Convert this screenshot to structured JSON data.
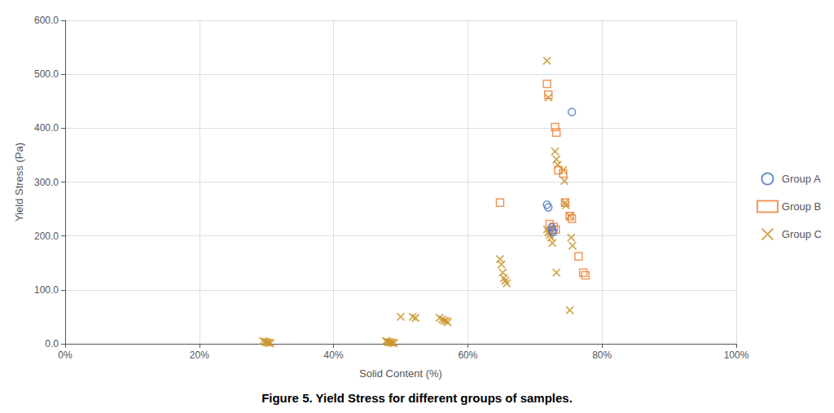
{
  "chart_data": {
    "type": "scatter",
    "title": "Figure 5. Yield Stress for different groups of samples.",
    "x_label": "Solid Content (%)",
    "y_label": "Yield Stress (Pa)",
    "xlim": [
      0,
      1.0
    ],
    "ylim": [
      0,
      600
    ],
    "xticks": [
      {
        "value": 0.0,
        "label": "0%"
      },
      {
        "value": 0.2,
        "label": "20%"
      },
      {
        "value": 0.4,
        "label": "40%"
      },
      {
        "value": 0.6,
        "label": "60%"
      },
      {
        "value": 0.8,
        "label": "80%"
      },
      {
        "value": 1.0,
        "label": "100%"
      }
    ],
    "yticks": [
      {
        "value": 0,
        "label": "0.0"
      },
      {
        "value": 100,
        "label": "100.0"
      },
      {
        "value": 200,
        "label": "200.0"
      },
      {
        "value": 300,
        "label": "300.0"
      },
      {
        "value": 400,
        "label": "400.0"
      },
      {
        "value": 500,
        "label": "500.0"
      },
      {
        "value": 600,
        "label": "600.0"
      }
    ],
    "grid": true,
    "legend": "right",
    "series": [
      {
        "name": "Group A",
        "color": "#4472C4",
        "marker": "circle",
        "x": [
          0.755,
          0.718,
          0.72,
          0.725,
          0.726,
          0.727
        ],
        "values": [
          430,
          258,
          253,
          216,
          211,
          207
        ]
      },
      {
        "name": "Group B",
        "color": "#ED7D31",
        "marker": "square",
        "x": [
          0.718,
          0.72,
          0.73,
          0.732,
          0.735,
          0.742,
          0.745,
          0.752,
          0.755,
          0.765,
          0.772,
          0.775,
          0.648,
          0.722,
          0.728,
          0.731
        ],
        "values": [
          482,
          462,
          402,
          392,
          322,
          316,
          262,
          237,
          232,
          162,
          132,
          127,
          262,
          222,
          217,
          212
        ]
      },
      {
        "name": "Group C",
        "color": "#C9952C",
        "marker": "x",
        "x": [
          0.718,
          0.72,
          0.73,
          0.732,
          0.734,
          0.742,
          0.744,
          0.745,
          0.746,
          0.752,
          0.754,
          0.756,
          0.648,
          0.65,
          0.652,
          0.654,
          0.656,
          0.658,
          0.558,
          0.562,
          0.565,
          0.568,
          0.57,
          0.295,
          0.298,
          0.3,
          0.302,
          0.304,
          0.306,
          0.478,
          0.48,
          0.482,
          0.484,
          0.486,
          0.488,
          0.49,
          0.5,
          0.518,
          0.522,
          0.718,
          0.72,
          0.722,
          0.724,
          0.726,
          0.732,
          0.752
        ],
        "values": [
          525,
          457,
          357,
          342,
          332,
          322,
          302,
          262,
          257,
          237,
          197,
          182,
          157,
          147,
          132,
          122,
          117,
          112,
          48,
          45,
          43,
          42,
          40,
          5,
          4,
          3,
          2,
          2,
          1,
          5,
          4,
          3,
          3,
          2,
          2,
          1,
          50,
          50,
          48,
          212,
          207,
          202,
          197,
          187,
          132,
          62
        ]
      }
    ]
  }
}
